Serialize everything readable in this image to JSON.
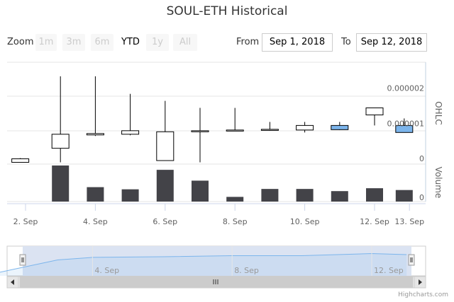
{
  "title": "SOUL-ETH Historical",
  "range_selector": {
    "zoom_label": "Zoom",
    "buttons": [
      {
        "label": "1m",
        "active": false
      },
      {
        "label": "3m",
        "active": false
      },
      {
        "label": "6m",
        "active": false
      },
      {
        "label": "YTD",
        "active": true
      },
      {
        "label": "1y",
        "active": false
      },
      {
        "label": "All",
        "active": false
      }
    ],
    "from_label": "From",
    "from_value": "Sep 1, 2018",
    "to_label": "To",
    "to_value": "Sep 12, 2018"
  },
  "credits": "Highcharts.com",
  "colors": {
    "up": "#ffffff",
    "down_highlight": "#7cb5ec",
    "volume": "#434348",
    "navigator_fill": "#dbe3f2",
    "navigator_line": "#7cb5ec"
  },
  "chart_data": {
    "type": "candlestick",
    "ohlc_axis": {
      "title": "OHLC",
      "ticks": [
        0,
        1e-06,
        2e-06
      ],
      "tick_labels": [
        "0",
        "0.000001",
        "0.000002"
      ]
    },
    "volume_axis": {
      "title": "Volume",
      "tick_labels": [
        "0",
        "0"
      ]
    },
    "x_tick_labels": [
      "2. Sep",
      "4. Sep",
      "6. Sep",
      "8. Sep",
      "10. Sep",
      "12. Sep",
      "13. Sep"
    ],
    "x_tick_days": [
      2,
      4,
      6,
      8,
      10,
      12,
      13
    ],
    "navigator_labels": [
      "4. Sep",
      "8. Sep",
      "12. Sep"
    ],
    "navigator_days": [
      4,
      8,
      12
    ],
    "candles": [
      {
        "day": 1.85,
        "open": 1.5e-07,
        "high": 1.7e-07,
        "low": 5e-08,
        "close": 5e-08,
        "color": "#ffffff"
      },
      {
        "day": 3,
        "open": 4.5e-07,
        "high": 2.5e-06,
        "low": 5e-08,
        "close": 8.5e-07,
        "color": "#ffffff"
      },
      {
        "day": 4,
        "open": 8.3e-07,
        "high": 2.5e-06,
        "low": 8e-07,
        "close": 8.7e-07,
        "color": "#ffffff"
      },
      {
        "day": 5,
        "open": 8.5e-07,
        "high": 2e-06,
        "low": 8.2e-07,
        "close": 9.5e-07,
        "color": "#ffffff"
      },
      {
        "day": 6,
        "open": 9.2e-07,
        "high": 1.8e-06,
        "low": 1e-07,
        "close": 1e-07,
        "color": "#ffffff"
      },
      {
        "day": 7,
        "open": 9.5e-07,
        "high": 1.6e-06,
        "low": 5e-08,
        "close": 9.4e-07,
        "color": "#ffffff"
      },
      {
        "day": 8,
        "open": 9.5e-07,
        "high": 1.6e-06,
        "low": 9.4e-07,
        "close": 9.7e-07,
        "color": "#ffffff"
      },
      {
        "day": 9,
        "open": 9.7e-07,
        "high": 1.2e-06,
        "low": 9.5e-07,
        "close": 9.9e-07,
        "color": "#ffffff"
      },
      {
        "day": 10,
        "open": 9.7e-07,
        "high": 1.2e-06,
        "low": 9e-07,
        "close": 1.1e-06,
        "color": "#ffffff"
      },
      {
        "day": 11,
        "open": 9.8e-07,
        "high": 1.2e-06,
        "low": 9.7e-07,
        "close": 1.1e-06,
        "color": "#7cb5ec"
      },
      {
        "day": 12,
        "open": 1.4e-06,
        "high": 1.6e-06,
        "low": 1.1e-06,
        "close": 1.6e-06,
        "color": "#ffffff"
      },
      {
        "day": 12.85,
        "open": 1.1e-06,
        "high": 1.3e-06,
        "low": 9e-07,
        "close": 9e-07,
        "color": "#7cb5ec"
      }
    ],
    "volume": [
      {
        "day": 1.85,
        "value": 0
      },
      {
        "day": 3,
        "value": 1.0
      },
      {
        "day": 4,
        "value": 0.4
      },
      {
        "day": 5,
        "value": 0.34
      },
      {
        "day": 6,
        "value": 0.88
      },
      {
        "day": 7,
        "value": 0.58
      },
      {
        "day": 8,
        "value": 0.13
      },
      {
        "day": 9,
        "value": 0.35
      },
      {
        "day": 10,
        "value": 0.35
      },
      {
        "day": 11,
        "value": 0.29
      },
      {
        "day": 12,
        "value": 0.37
      },
      {
        "day": 12.85,
        "value": 0.32
      }
    ],
    "navigator_series": [
      {
        "day": 1.0,
        "value": 0.05
      },
      {
        "day": 3,
        "value": 0.75
      },
      {
        "day": 4,
        "value": 0.87
      },
      {
        "day": 6,
        "value": 0.9
      },
      {
        "day": 8,
        "value": 0.95
      },
      {
        "day": 10,
        "value": 0.95
      },
      {
        "day": 12,
        "value": 1.05
      },
      {
        "day": 13,
        "value": 1.0
      }
    ]
  }
}
